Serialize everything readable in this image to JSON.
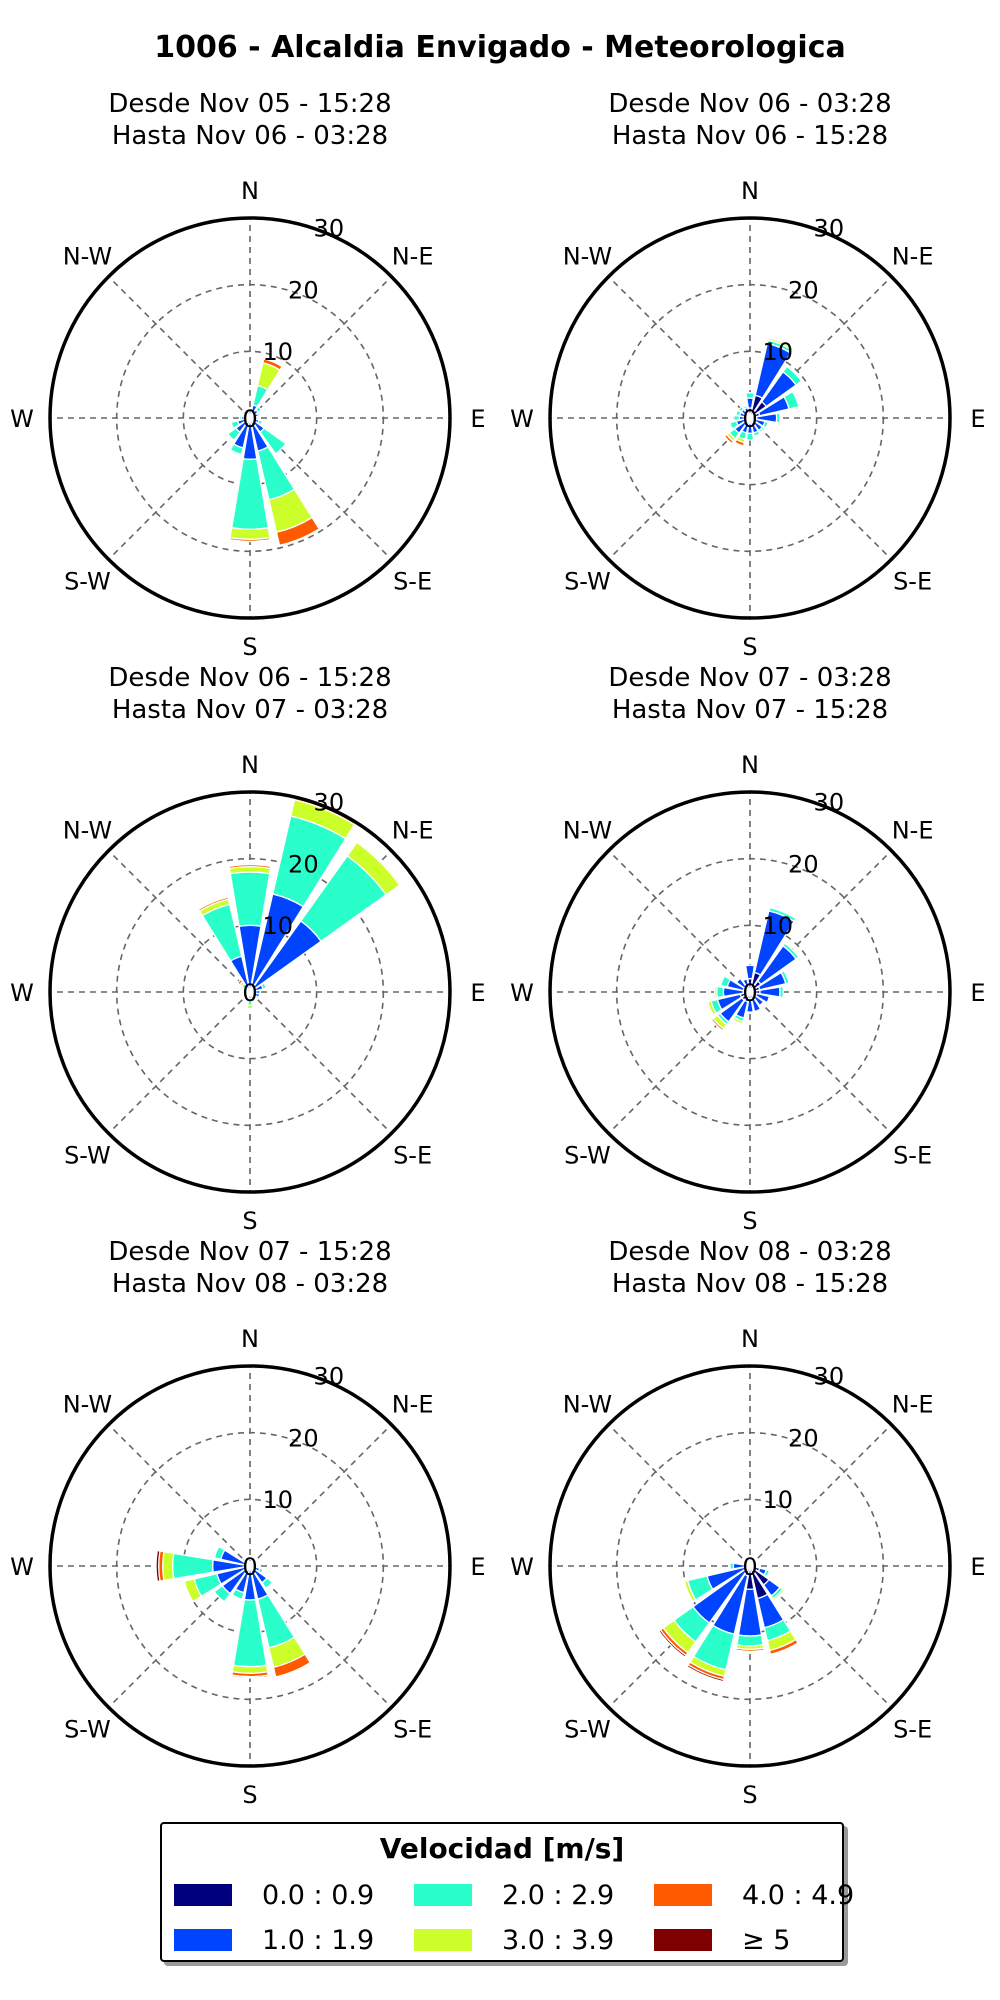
{
  "title": "1006 - Alcaldia Envigado - Meteorologica",
  "rings": [
    0,
    10,
    20,
    30
  ],
  "directions": [
    "N",
    "N-E",
    "E",
    "S-E",
    "S",
    "S-W",
    "W",
    "N-W"
  ],
  "legend": {
    "title": "Velocidad [m/s]",
    "items": [
      {
        "label": "0.0 : 0.9",
        "color": "#00007f"
      },
      {
        "label": "1.0 : 1.9",
        "color": "#0044ff"
      },
      {
        "label": "2.0 : 2.9",
        "color": "#2affcc"
      },
      {
        "label": "3.0 : 3.9",
        "color": "#ccff2a"
      },
      {
        "label": "4.0 : 4.9",
        "color": "#ff5a00"
      },
      {
        "label": "≥ 5",
        "color": "#7f0000"
      }
    ]
  },
  "chart_data": [
    {
      "type": "windrose",
      "title_line1": "Desde Nov 05 - 15:28",
      "title_line2": "Hasta Nov 06 - 03:28",
      "rlim": [
        0,
        30
      ],
      "directions_deg": [
        0,
        22.5,
        45,
        67.5,
        90,
        112.5,
        135,
        157.5,
        180,
        202.5,
        225,
        247.5,
        270,
        292.5,
        315,
        337.5
      ],
      "series": [
        {
          "name": "0.0 : 0.9",
          "values": [
            0.5,
            0.6,
            0.5,
            0.5,
            0.5,
            0.5,
            0.6,
            0.6,
            0.7,
            0.6,
            0.6,
            0.5,
            0.5,
            0.4,
            0.4,
            0.4
          ]
        },
        {
          "name": "1.0 : 1.9",
          "values": [
            0.8,
            1.4,
            1.0,
            0.8,
            0.6,
            0.9,
            2.0,
            4.5,
            5.5,
            4.0,
            2.0,
            1.4,
            0.8,
            0.6,
            0.8,
            0.9
          ]
        },
        {
          "name": "2.0 : 2.9",
          "values": [
            0,
            3.0,
            0.6,
            0.3,
            0.2,
            0.5,
            4.0,
            7.5,
            10.5,
            1.0,
            1.5,
            1.0,
            0.3,
            0,
            0,
            0
          ]
        },
        {
          "name": "3.0 : 3.9",
          "values": [
            0,
            3.5,
            0,
            0,
            0,
            0,
            0,
            5.0,
            1.5,
            0,
            0,
            0,
            0,
            0,
            0,
            0
          ]
        },
        {
          "name": "4.0 : 4.9",
          "values": [
            0,
            0.6,
            0,
            0,
            0,
            0,
            0,
            2.0,
            0.3,
            0,
            0,
            0,
            0,
            0,
            0,
            0
          ]
        },
        {
          "name": "≥ 5",
          "values": [
            0,
            0,
            0,
            0,
            0,
            0,
            0,
            0,
            0,
            0,
            0,
            0,
            0,
            0,
            0,
            0
          ]
        }
      ]
    },
    {
      "type": "windrose",
      "title_line1": "Desde Nov 06 - 03:28",
      "title_line2": "Hasta Nov 06 - 15:28",
      "rlim": [
        0,
        30
      ],
      "directions_deg": [
        0,
        22.5,
        45,
        67.5,
        90,
        112.5,
        135,
        157.5,
        180,
        202.5,
        225,
        247.5,
        270,
        292.5,
        315,
        337.5
      ],
      "series": [
        {
          "name": "0.0 : 0.9",
          "values": [
            1.5,
            3.5,
            3.0,
            1.5,
            1.0,
            0.8,
            0.8,
            0.8,
            0.8,
            0.8,
            0.8,
            0.6,
            0.6,
            0.6,
            0.8,
            0.8
          ]
        },
        {
          "name": "1.0 : 1.9",
          "values": [
            1.5,
            8.0,
            5.5,
            4.5,
            3.0,
            1.5,
            1.5,
            1.5,
            1.5,
            1.5,
            2.0,
            1.5,
            1.0,
            1.0,
            0.8,
            0.8
          ]
        },
        {
          "name": "2.0 : 2.9",
          "values": [
            0.8,
            0.5,
            1.0,
            1.5,
            0.5,
            0.5,
            0.3,
            0.5,
            1.0,
            1.0,
            1.0,
            1.0,
            0.8,
            0.6,
            0.5,
            0.3
          ]
        },
        {
          "name": "3.0 : 3.9",
          "values": [
            0,
            0.3,
            0,
            0,
            0,
            0,
            0,
            0,
            0,
            0.5,
            0.5,
            0.2,
            0,
            0,
            0,
            0
          ]
        },
        {
          "name": "4.0 : 4.9",
          "values": [
            0,
            0,
            0,
            0,
            0,
            0,
            0,
            0,
            0,
            0.5,
            0.4,
            0,
            0,
            0,
            0,
            0
          ]
        },
        {
          "name": "≥ 5",
          "values": [
            0,
            0,
            0,
            0,
            0,
            0,
            0,
            0,
            0,
            0,
            0,
            0,
            0,
            0,
            0,
            0
          ]
        }
      ]
    },
    {
      "type": "windrose",
      "title_line1": "Desde Nov 06 - 15:28",
      "title_line2": "Hasta Nov 07 - 03:28",
      "rlim": [
        0,
        30
      ],
      "directions_deg": [
        0,
        22.5,
        45,
        67.5,
        90,
        112.5,
        135,
        157.5,
        180,
        202.5,
        225,
        247.5,
        270,
        292.5,
        315,
        337.5
      ],
      "series": [
        {
          "name": "0.0 : 0.9",
          "values": [
            0.5,
            0.6,
            0.6,
            0.5,
            0.5,
            0.5,
            0.4,
            0.4,
            0.4,
            0.3,
            0.3,
            0.3,
            0.3,
            0.3,
            0.3,
            0.5
          ]
        },
        {
          "name": "1.0 : 1.9",
          "values": [
            9.5,
            14.5,
            12.5,
            1.5,
            1.0,
            1.0,
            0.5,
            0.6,
            0.6,
            0.3,
            0.3,
            0.3,
            0.3,
            0.6,
            0.6,
            5.0
          ]
        },
        {
          "name": "2.0 : 2.9",
          "values": [
            8.0,
            12.0,
            12.0,
            0.5,
            0,
            0,
            0,
            0.5,
            1.0,
            0,
            0,
            0,
            0,
            0,
            0.6,
            8.0
          ]
        },
        {
          "name": "3.0 : 3.9",
          "values": [
            0.8,
            2.5,
            2.5,
            0,
            0,
            0,
            0,
            0,
            0.5,
            0,
            0,
            0,
            0,
            0,
            0.4,
            0.8
          ]
        },
        {
          "name": "4.0 : 4.9",
          "values": [
            0.3,
            0.3,
            0.2,
            0,
            0,
            0,
            0,
            0,
            0,
            0,
            0,
            0,
            0,
            0,
            0.4,
            0.3
          ]
        },
        {
          "name": "≥ 5",
          "values": [
            0,
            0,
            0,
            0,
            0,
            0,
            0,
            0,
            0,
            0,
            0,
            0,
            0,
            0,
            0,
            0
          ]
        }
      ]
    },
    {
      "type": "windrose",
      "title_line1": "Desde Nov 07 - 03:28",
      "title_line2": "Hasta Nov 07 - 15:28",
      "rlim": [
        0,
        30
      ],
      "directions_deg": [
        0,
        22.5,
        45,
        67.5,
        90,
        112.5,
        135,
        157.5,
        180,
        202.5,
        225,
        247.5,
        270,
        292.5,
        315,
        337.5
      ],
      "series": [
        {
          "name": "0.0 : 0.9",
          "values": [
            2.0,
            3.0,
            2.0,
            1.5,
            1.5,
            1.0,
            1.0,
            1.0,
            1.0,
            1.5,
            1.5,
            1.5,
            1.0,
            1.0,
            1.0,
            1.0
          ]
        },
        {
          "name": "1.0 : 1.9",
          "values": [
            2.0,
            9.5,
            6.5,
            4.0,
            3.0,
            2.0,
            1.5,
            2.0,
            2.0,
            2.5,
            4.0,
            3.5,
            3.0,
            2.5,
            1.5,
            1.0
          ]
        },
        {
          "name": "2.0 : 2.9",
          "values": [
            0,
            0.5,
            0.5,
            0.5,
            0.5,
            0.2,
            0.2,
            0,
            0,
            0.5,
            0.5,
            1.0,
            1.0,
            1.0,
            0,
            0
          ]
        },
        {
          "name": "3.0 : 3.9",
          "values": [
            0,
            0,
            0,
            0,
            0,
            0,
            0,
            0,
            0,
            0.4,
            0.8,
            0.5,
            0.3,
            0,
            0,
            0
          ]
        },
        {
          "name": "4.0 : 4.9",
          "values": [
            0,
            0,
            0,
            0,
            0,
            0,
            0,
            0,
            0,
            0.2,
            0.3,
            0.2,
            0,
            0,
            0,
            0
          ]
        },
        {
          "name": "≥ 5",
          "values": [
            0,
            0,
            0,
            0,
            0,
            0,
            0,
            0,
            0,
            0,
            0,
            0,
            0,
            0,
            0,
            0
          ]
        }
      ]
    },
    {
      "type": "windrose",
      "title_line1": "Desde Nov 07 - 15:28",
      "title_line2": "Hasta Nov 08 - 03:28",
      "rlim": [
        0,
        30
      ],
      "directions_deg": [
        0,
        22.5,
        45,
        67.5,
        90,
        112.5,
        135,
        157.5,
        180,
        202.5,
        225,
        247.5,
        270,
        292.5,
        315,
        337.5
      ],
      "series": [
        {
          "name": "0.0 : 0.9",
          "values": [
            0.4,
            0.4,
            0.4,
            0.4,
            0.4,
            0.5,
            0.6,
            0.6,
            0.6,
            0.6,
            0.6,
            0.6,
            0.6,
            0.5,
            0.4,
            0.4
          ]
        },
        {
          "name": "1.0 : 1.9",
          "values": [
            0.3,
            0.3,
            0.3,
            0.3,
            0.3,
            1.0,
            2.5,
            4.5,
            4.5,
            3.5,
            4.5,
            4.5,
            5.0,
            4.0,
            0.8,
            0.3
          ]
        },
        {
          "name": "2.0 : 2.9",
          "values": [
            0,
            0,
            0,
            0,
            0,
            0.5,
            1.0,
            7.5,
            10.0,
            1.0,
            1.5,
            3.5,
            6.0,
            1.0,
            0.3,
            0
          ]
        },
        {
          "name": "3.0 : 3.9",
          "values": [
            0,
            0,
            0,
            0,
            0,
            0,
            0,
            3.0,
            1.0,
            0,
            0,
            1.5,
            1.5,
            0,
            0,
            0
          ]
        },
        {
          "name": "4.0 : 4.9",
          "values": [
            0,
            0,
            0,
            0,
            0,
            0,
            0,
            1.5,
            0.5,
            0,
            0,
            0,
            0.6,
            0,
            0,
            0
          ]
        },
        {
          "name": "≥ 5",
          "values": [
            0,
            0,
            0,
            0,
            0,
            0,
            0,
            0,
            0.2,
            0,
            0,
            0,
            0.4,
            0,
            0,
            0
          ]
        }
      ]
    },
    {
      "type": "windrose",
      "title_line1": "Desde Nov 08 - 03:28",
      "title_line2": "Hasta Nov 08 - 15:28",
      "rlim": [
        0,
        30
      ],
      "directions_deg": [
        0,
        22.5,
        45,
        67.5,
        90,
        112.5,
        135,
        157.5,
        180,
        202.5,
        225,
        247.5,
        270,
        292.5,
        315,
        337.5
      ],
      "series": [
        {
          "name": "0.0 : 0.9",
          "values": [
            0.5,
            0.5,
            0.5,
            0.5,
            0.6,
            1.5,
            3.5,
            5.0,
            3.5,
            1.5,
            1.0,
            0.6,
            0.5,
            0.3,
            0.3,
            0.3
          ]
        },
        {
          "name": "1.0 : 1.9",
          "values": [
            0.3,
            0.3,
            0.3,
            0.3,
            0.4,
            1.0,
            2.0,
            4.5,
            7.0,
            9.0,
            9.5,
            6.0,
            2.0,
            0.3,
            0.3,
            0.3
          ]
        },
        {
          "name": "2.0 : 2.9",
          "values": [
            0,
            0,
            0,
            0,
            0,
            0.5,
            0.5,
            2.0,
            1.5,
            5.5,
            3.5,
            3.0,
            0.5,
            0,
            0,
            0
          ]
        },
        {
          "name": "3.0 : 3.9",
          "values": [
            0,
            0,
            0,
            0,
            0,
            0,
            0.3,
            1.5,
            0.5,
            1.0,
            2.0,
            0.5,
            0,
            0,
            0,
            0
          ]
        },
        {
          "name": "4.0 : 4.9",
          "values": [
            0,
            0,
            0,
            0,
            0,
            0,
            0,
            0.6,
            0.3,
            0.5,
            0.5,
            0,
            0,
            0,
            0,
            0
          ]
        },
        {
          "name": "≥ 5",
          "values": [
            0,
            0,
            0,
            0,
            0,
            0,
            0,
            0,
            0,
            0.3,
            0.3,
            0,
            0,
            0,
            0,
            0
          ]
        }
      ]
    }
  ]
}
